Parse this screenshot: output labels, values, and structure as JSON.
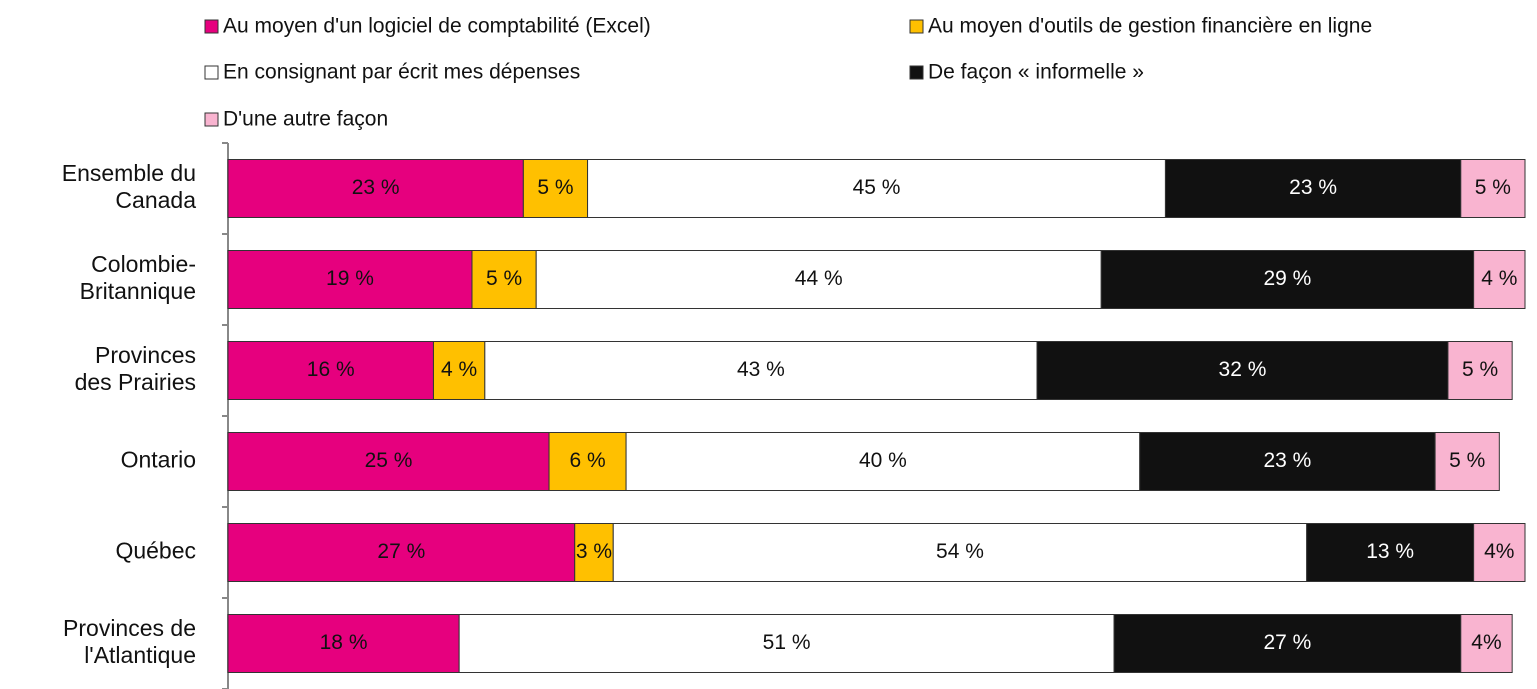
{
  "chart_data": {
    "type": "stacked-bar-horizontal",
    "categories": [
      [
        "Ensemble du",
        "Canada"
      ],
      [
        "Colombie-",
        "Britannique"
      ],
      [
        "Provinces",
        "des Prairies"
      ],
      [
        "Ontario"
      ],
      [
        "Québec"
      ],
      [
        "Provinces de",
        "l'Atlantique"
      ]
    ],
    "series": [
      {
        "name": "Au moyen d'un logiciel de comptabilité (Excel)",
        "color": "#e6007e",
        "values": [
          23,
          19,
          16,
          25,
          27,
          18
        ],
        "value_labels": [
          "23 %",
          "19 %",
          "16 %",
          "25 %",
          "27 %",
          "18 %"
        ]
      },
      {
        "name": "Au moyen d'outils de gestion financière en ligne",
        "color": "#ffc000",
        "values": [
          5,
          5,
          4,
          6,
          3,
          null
        ],
        "value_labels": [
          "5 %",
          "5 %",
          "4 %",
          "6 %",
          "3 %",
          null
        ]
      },
      {
        "name": "En consignant par écrit mes dépenses",
        "color": "#ffffff",
        "values": [
          45,
          44,
          43,
          40,
          54,
          51
        ],
        "value_labels": [
          "45 %",
          "44 %",
          "43 %",
          "40 %",
          "54 %",
          "51 %"
        ]
      },
      {
        "name": "De façon « informelle »",
        "color": "#111111",
        "values": [
          23,
          29,
          32,
          23,
          13,
          27
        ],
        "value_labels": [
          "23 %",
          "29 %",
          "32 %",
          "23 %",
          "13 %",
          "27 %"
        ]
      },
      {
        "name": "D'une autre façon",
        "color": "#f9b4d0",
        "values": [
          5,
          4,
          5,
          5,
          4,
          4
        ],
        "value_labels": [
          "5 %",
          "4 %",
          "5 %",
          "5 %",
          "4%",
          "4%"
        ]
      }
    ],
    "xlim": [
      0,
      101
    ]
  }
}
